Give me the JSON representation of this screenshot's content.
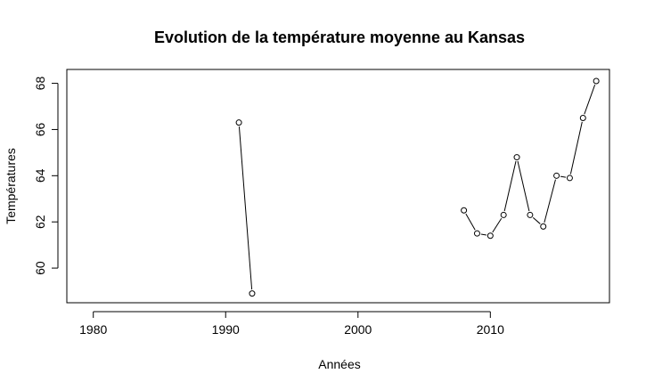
{
  "chart_data": {
    "type": "line",
    "title": "Evolution de la température moyenne au Kansas",
    "xlabel": "Années",
    "ylabel": "Températures",
    "xlim": [
      1978,
      2019
    ],
    "ylim": [
      58.5,
      68.6
    ],
    "x_ticks": [
      "1980",
      "1990",
      "2000",
      "2010"
    ],
    "y_ticks": [
      "60",
      "62",
      "64",
      "66",
      "68"
    ],
    "grid": false,
    "series": [
      {
        "segments": [
          {
            "x": [
              1991,
              1992
            ],
            "y": [
              66.3,
              58.9
            ]
          },
          {
            "x": [
              2008,
              2009,
              2010,
              2011,
              2012,
              2013,
              2014,
              2015,
              2016,
              2017,
              2018
            ],
            "y": [
              62.5,
              61.5,
              61.4,
              62.3,
              64.8,
              62.3,
              61.8,
              64.0,
              63.9,
              66.5,
              68.1
            ]
          }
        ]
      }
    ]
  }
}
